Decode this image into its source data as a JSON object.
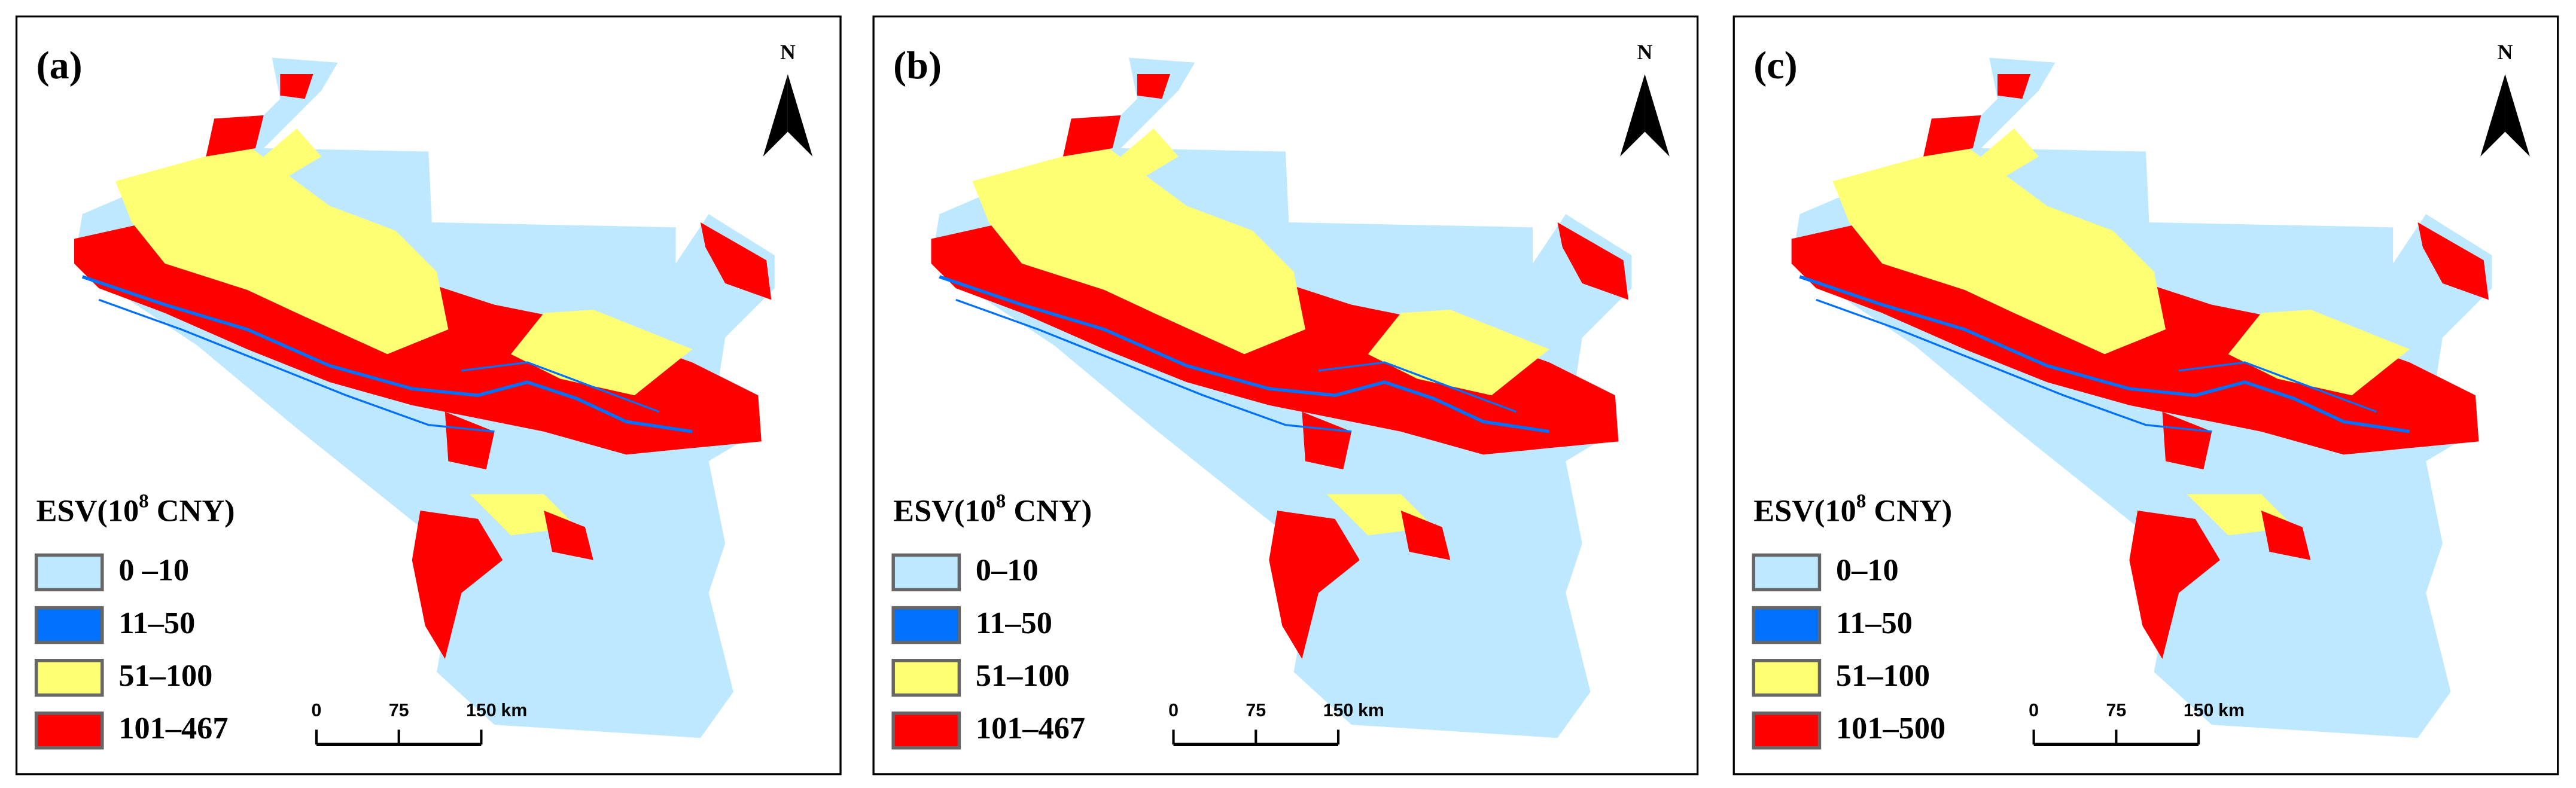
{
  "panels": [
    {
      "label": "(a)",
      "north": "N",
      "legend": {
        "title": {
          "prefix": "ESV(10",
          "sup": "8",
          "suffix": " CNY)"
        },
        "items": [
          {
            "label": "0 –10",
            "color": "#bee8ff"
          },
          {
            "label": "11–50",
            "color": "#0070ff"
          },
          {
            "label": "51–100",
            "color": "#ffff73"
          },
          {
            "label": "101–467",
            "color": "#ff0000"
          }
        ]
      },
      "scale": {
        "ticks": [
          0,
          75,
          150
        ],
        "unit": "km"
      }
    },
    {
      "label": "(b)",
      "north": "N",
      "legend": {
        "title": {
          "prefix": "ESV(10",
          "sup": "8",
          "suffix": " CNY)"
        },
        "items": [
          {
            "label": "0–10",
            "color": "#bee8ff"
          },
          {
            "label": "11–50",
            "color": "#0070ff"
          },
          {
            "label": "51–100",
            "color": "#ffff73"
          },
          {
            "label": "101–467",
            "color": "#ff0000"
          }
        ]
      },
      "scale": {
        "ticks": [
          0,
          75,
          150
        ],
        "unit": "km"
      }
    },
    {
      "label": "(c)",
      "north": "N",
      "legend": {
        "title": {
          "prefix": "ESV(10",
          "sup": "8",
          "suffix": " CNY)"
        },
        "items": [
          {
            "label": "0–10",
            "color": "#bee8ff"
          },
          {
            "label": "11–50",
            "color": "#0070ff"
          },
          {
            "label": "51–100",
            "color": "#ffff73"
          },
          {
            "label": "101–500",
            "color": "#ff0000"
          }
        ]
      },
      "scale": {
        "ticks": [
          0,
          75,
          150
        ],
        "unit": "km"
      }
    }
  ]
}
